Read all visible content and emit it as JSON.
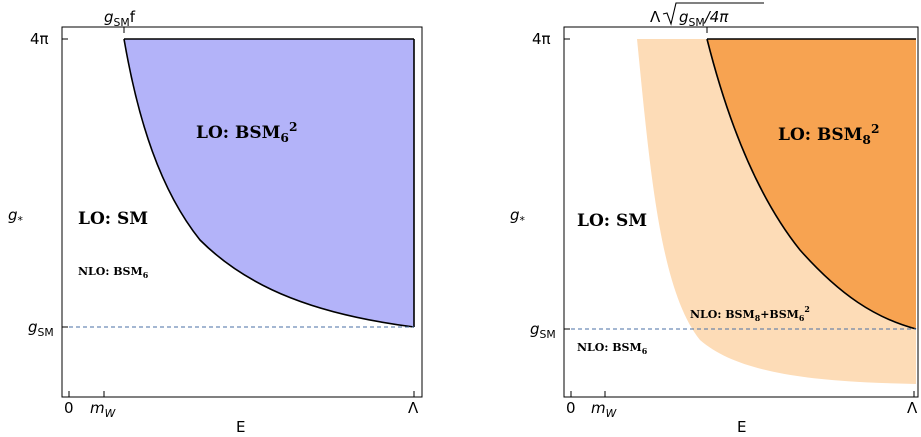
{
  "colors": {
    "left_fill": "#b3b3f9",
    "right_fill_dark": "#f7a351",
    "right_fill_light": "#fddcb7",
    "dashed_line": "#4a6fa5",
    "frame": "#000000"
  },
  "left": {
    "top_label_g": "g",
    "top_label_sub": "SM",
    "top_label_tail": "f",
    "y_top_tick": "4π",
    "y_axis_label": "g",
    "y_axis_label_sub": "*",
    "y_gsm_label": "g",
    "y_gsm_label_sub": "SM",
    "x_tick_zero": "0",
    "x_tick_mw": "m",
    "x_tick_mw_sub": "W",
    "x_tick_lambda": "Λ",
    "x_axis_label": "E",
    "region_lo_bsm": "LO: BSM",
    "region_lo_bsm_sub": "6",
    "region_lo_bsm_sup": "2",
    "region_lo_sm": "LO: SM",
    "region_nlo": "NLO: BSM",
    "region_nlo_sub": "6"
  },
  "right": {
    "top_label_lambda": "Λ",
    "top_label_g": "g",
    "top_label_g_sub": "SM",
    "top_label_tail": "/4π",
    "y_top_tick": "4π",
    "y_axis_label": "g",
    "y_axis_label_sub": "*",
    "y_gsm_label": "g",
    "y_gsm_label_sub": "SM",
    "x_tick_zero": "0",
    "x_tick_mw": "m",
    "x_tick_mw_sub": "W",
    "x_tick_lambda": "Λ",
    "x_axis_label": "E",
    "region_lo_bsm": "LO: BSM",
    "region_lo_bsm_sub": "8",
    "region_lo_bsm_sup": "2",
    "region_lo_sm": "LO: SM",
    "region_nlo_mixed_a": "NLO: BSM",
    "region_nlo_mixed_a_sub": "8",
    "region_nlo_mixed_b": "+BSM",
    "region_nlo_mixed_b_sub": "6",
    "region_nlo_mixed_b_sup": "2",
    "region_nlo": "NLO: BSM",
    "region_nlo_sub": "6"
  }
}
